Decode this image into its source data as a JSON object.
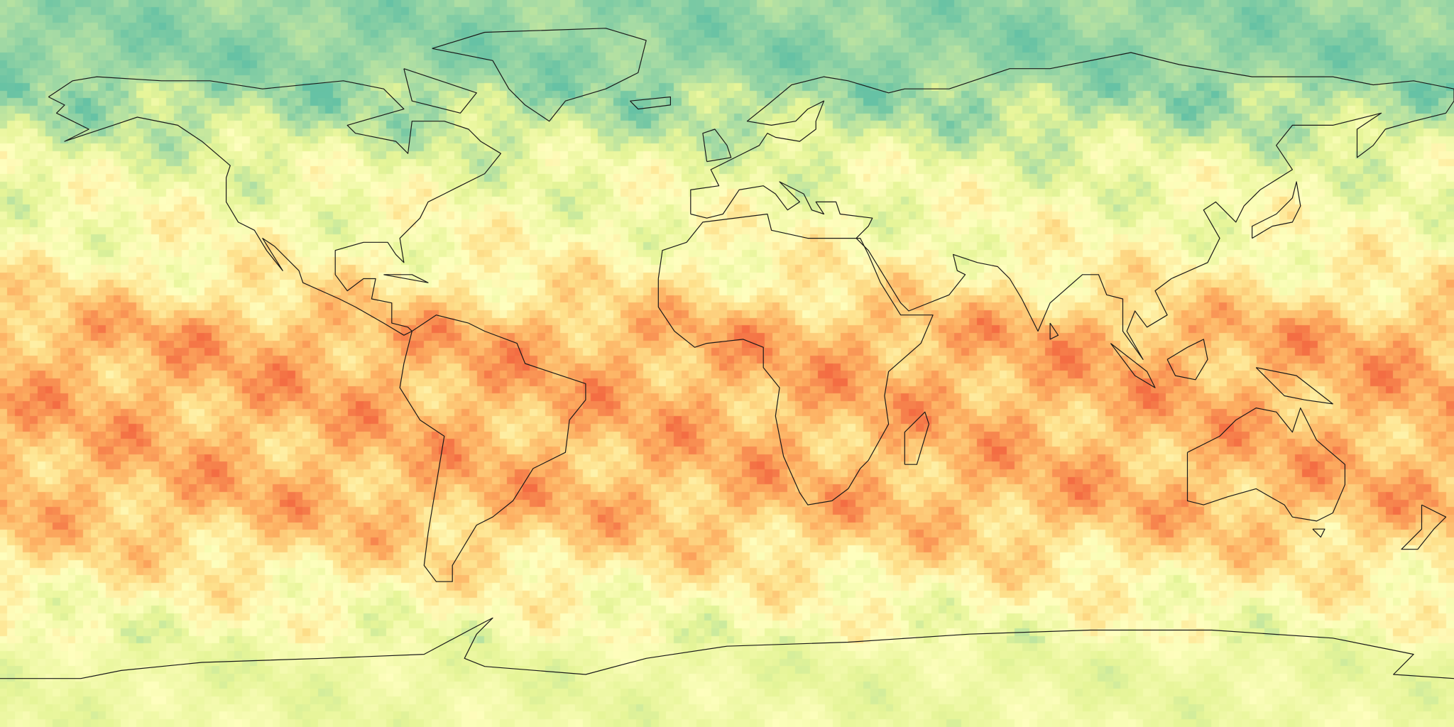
{
  "map": {
    "projection": "equirectangular",
    "extent": {
      "lon": [
        -180,
        180
      ],
      "lat": [
        -90,
        90
      ]
    },
    "coastlines": true,
    "colormap": [
      "#66c2a5",
      "#abdda4",
      "#e6f598",
      "#ffffbf",
      "#fee08b",
      "#fdae61",
      "#f46d43"
    ]
  }
}
